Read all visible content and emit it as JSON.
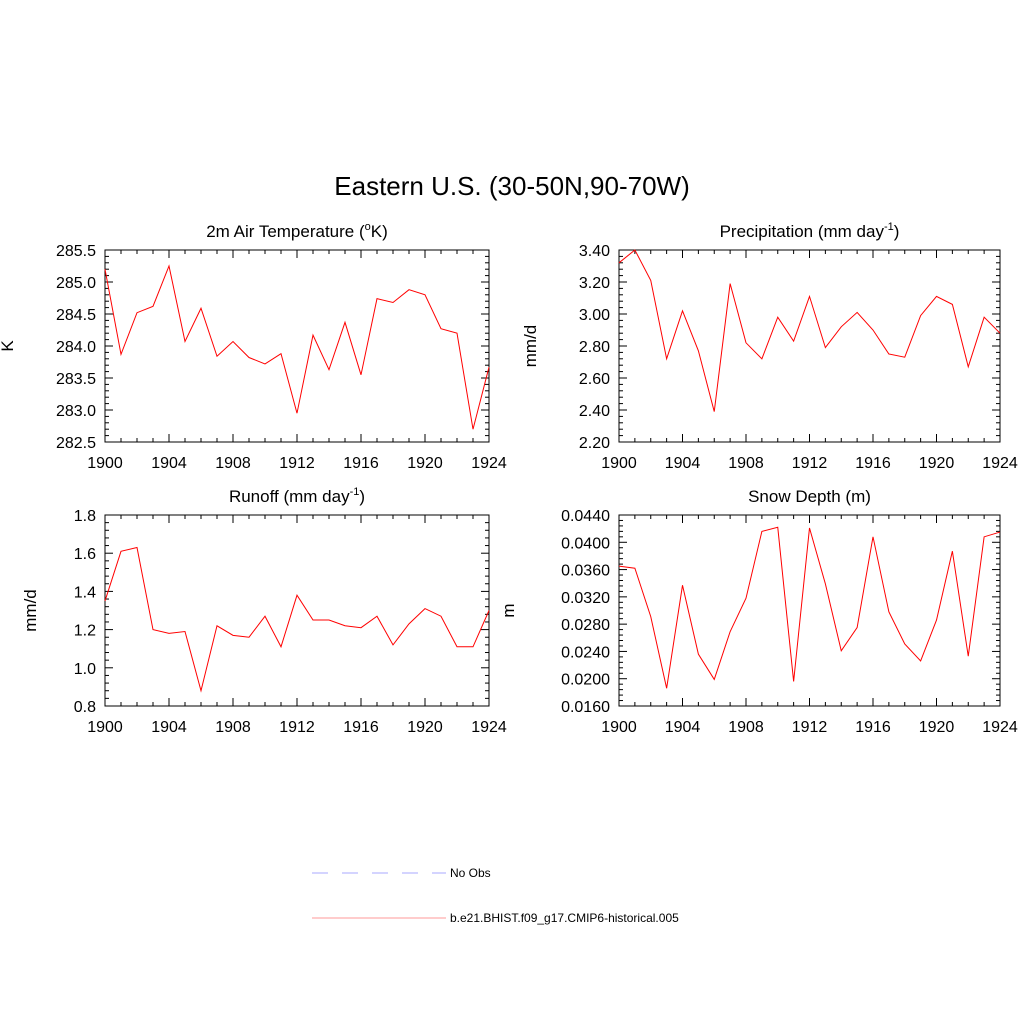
{
  "figure": {
    "title": "Eastern U.S. (30-50N,90-70W)"
  },
  "colors": {
    "series": "#ff0000",
    "obs": "#aaaaff",
    "axis": "#000000"
  },
  "legend": {
    "placement": "bottom-center",
    "entries": [
      {
        "label": "No Obs",
        "style": "dashed",
        "color": "#aaaaff"
      },
      {
        "label": "b.e21.BHIST.f09_g17.CMIP6-historical.005",
        "style": "solid",
        "color": "#ff9999"
      }
    ]
  },
  "chart_data": [
    {
      "type": "line",
      "title": "2m Air Temperature (",
      "title_sup": "o",
      "title_tail": "K)",
      "ylabel": "K",
      "xlim": [
        1900,
        1924
      ],
      "ylim": [
        282.5,
        285.5
      ],
      "xticks": [
        "1900",
        "1904",
        "1908",
        "1912",
        "1916",
        "1920",
        "1924"
      ],
      "yticks": [
        "282.5",
        "283.0",
        "283.5",
        "284.0",
        "284.5",
        "285.0",
        "285.5"
      ],
      "x": [
        1900,
        1901,
        1902,
        1903,
        1904,
        1905,
        1906,
        1907,
        1908,
        1909,
        1910,
        1911,
        1912,
        1913,
        1914,
        1915,
        1916,
        1917,
        1918,
        1919,
        1920,
        1921,
        1922,
        1923,
        1924
      ],
      "series": [
        {
          "name": "b.e21.BHIST.f09_g17.CMIP6-historical.005",
          "values": [
            285.2,
            283.87,
            284.52,
            284.62,
            285.25,
            284.07,
            284.59,
            283.84,
            284.07,
            283.82,
            283.72,
            283.88,
            282.95,
            284.17,
            283.63,
            284.37,
            283.55,
            284.74,
            284.68,
            284.88,
            284.8,
            284.27,
            284.2,
            282.7,
            283.67
          ]
        }
      ]
    },
    {
      "type": "line",
      "title": "Precipitation (mm day",
      "title_sup": "-1",
      "title_tail": ")",
      "ylabel": "mm/d",
      "xlim": [
        1900,
        1924
      ],
      "ylim": [
        2.2,
        3.4
      ],
      "xticks": [
        "1900",
        "1904",
        "1908",
        "1912",
        "1916",
        "1920",
        "1924"
      ],
      "yticks": [
        "2.20",
        "2.40",
        "2.60",
        "2.80",
        "3.00",
        "3.20",
        "3.40"
      ],
      "x": [
        1900,
        1901,
        1902,
        1903,
        1904,
        1905,
        1906,
        1907,
        1908,
        1909,
        1910,
        1911,
        1912,
        1913,
        1914,
        1915,
        1916,
        1917,
        1918,
        1919,
        1920,
        1921,
        1922,
        1923,
        1924
      ],
      "series": [
        {
          "name": "b.e21.BHIST.f09_g17.CMIP6-historical.005",
          "values": [
            3.32,
            3.4,
            3.21,
            2.72,
            3.02,
            2.77,
            2.39,
            3.19,
            2.82,
            2.72,
            2.98,
            2.83,
            3.11,
            2.79,
            2.92,
            3.01,
            2.9,
            2.75,
            2.73,
            2.99,
            3.11,
            3.06,
            2.67,
            2.98,
            2.88
          ]
        }
      ]
    },
    {
      "type": "line",
      "title": "Runoff (mm day",
      "title_sup": "-1",
      "title_tail": ")",
      "ylabel": "mm/d",
      "xlim": [
        1900,
        1924
      ],
      "ylim": [
        0.8,
        1.8
      ],
      "xticks": [
        "1900",
        "1904",
        "1908",
        "1912",
        "1916",
        "1920",
        "1924"
      ],
      "yticks": [
        "0.8",
        "1.0",
        "1.2",
        "1.4",
        "1.6",
        "1.8"
      ],
      "x": [
        1900,
        1901,
        1902,
        1903,
        1904,
        1905,
        1906,
        1907,
        1908,
        1909,
        1910,
        1911,
        1912,
        1913,
        1914,
        1915,
        1916,
        1917,
        1918,
        1919,
        1920,
        1921,
        1922,
        1923,
        1924
      ],
      "series": [
        {
          "name": "b.e21.BHIST.f09_g17.CMIP6-historical.005",
          "values": [
            1.35,
            1.61,
            1.63,
            1.2,
            1.18,
            1.19,
            0.88,
            1.22,
            1.17,
            1.16,
            1.27,
            1.11,
            1.38,
            1.25,
            1.25,
            1.22,
            1.21,
            1.27,
            1.12,
            1.23,
            1.31,
            1.27,
            1.11,
            1.11,
            1.3
          ]
        }
      ]
    },
    {
      "type": "line",
      "title": "Snow Depth (m)",
      "title_sup": "",
      "title_tail": "",
      "ylabel": "m",
      "xlim": [
        1900,
        1924
      ],
      "ylim": [
        0.016,
        0.044
      ],
      "xticks": [
        "1900",
        "1904",
        "1908",
        "1912",
        "1916",
        "1920",
        "1924"
      ],
      "yticks": [
        "0.0160",
        "0.0200",
        "0.0240",
        "0.0280",
        "0.0320",
        "0.0360",
        "0.0400",
        "0.0440"
      ],
      "x": [
        1900,
        1901,
        1902,
        1903,
        1904,
        1905,
        1906,
        1907,
        1908,
        1909,
        1910,
        1911,
        1912,
        1913,
        1914,
        1915,
        1916,
        1917,
        1918,
        1919,
        1920,
        1921,
        1922,
        1923,
        1924
      ],
      "series": [
        {
          "name": "b.e21.BHIST.f09_g17.CMIP6-historical.005",
          "values": [
            0.0365,
            0.0362,
            0.0291,
            0.0186,
            0.0337,
            0.0236,
            0.0199,
            0.0269,
            0.0318,
            0.0416,
            0.0422,
            0.0196,
            0.0421,
            0.0339,
            0.0241,
            0.0275,
            0.0408,
            0.0298,
            0.0251,
            0.0226,
            0.0286,
            0.0387,
            0.0233,
            0.0408,
            0.0415
          ]
        }
      ]
    }
  ]
}
